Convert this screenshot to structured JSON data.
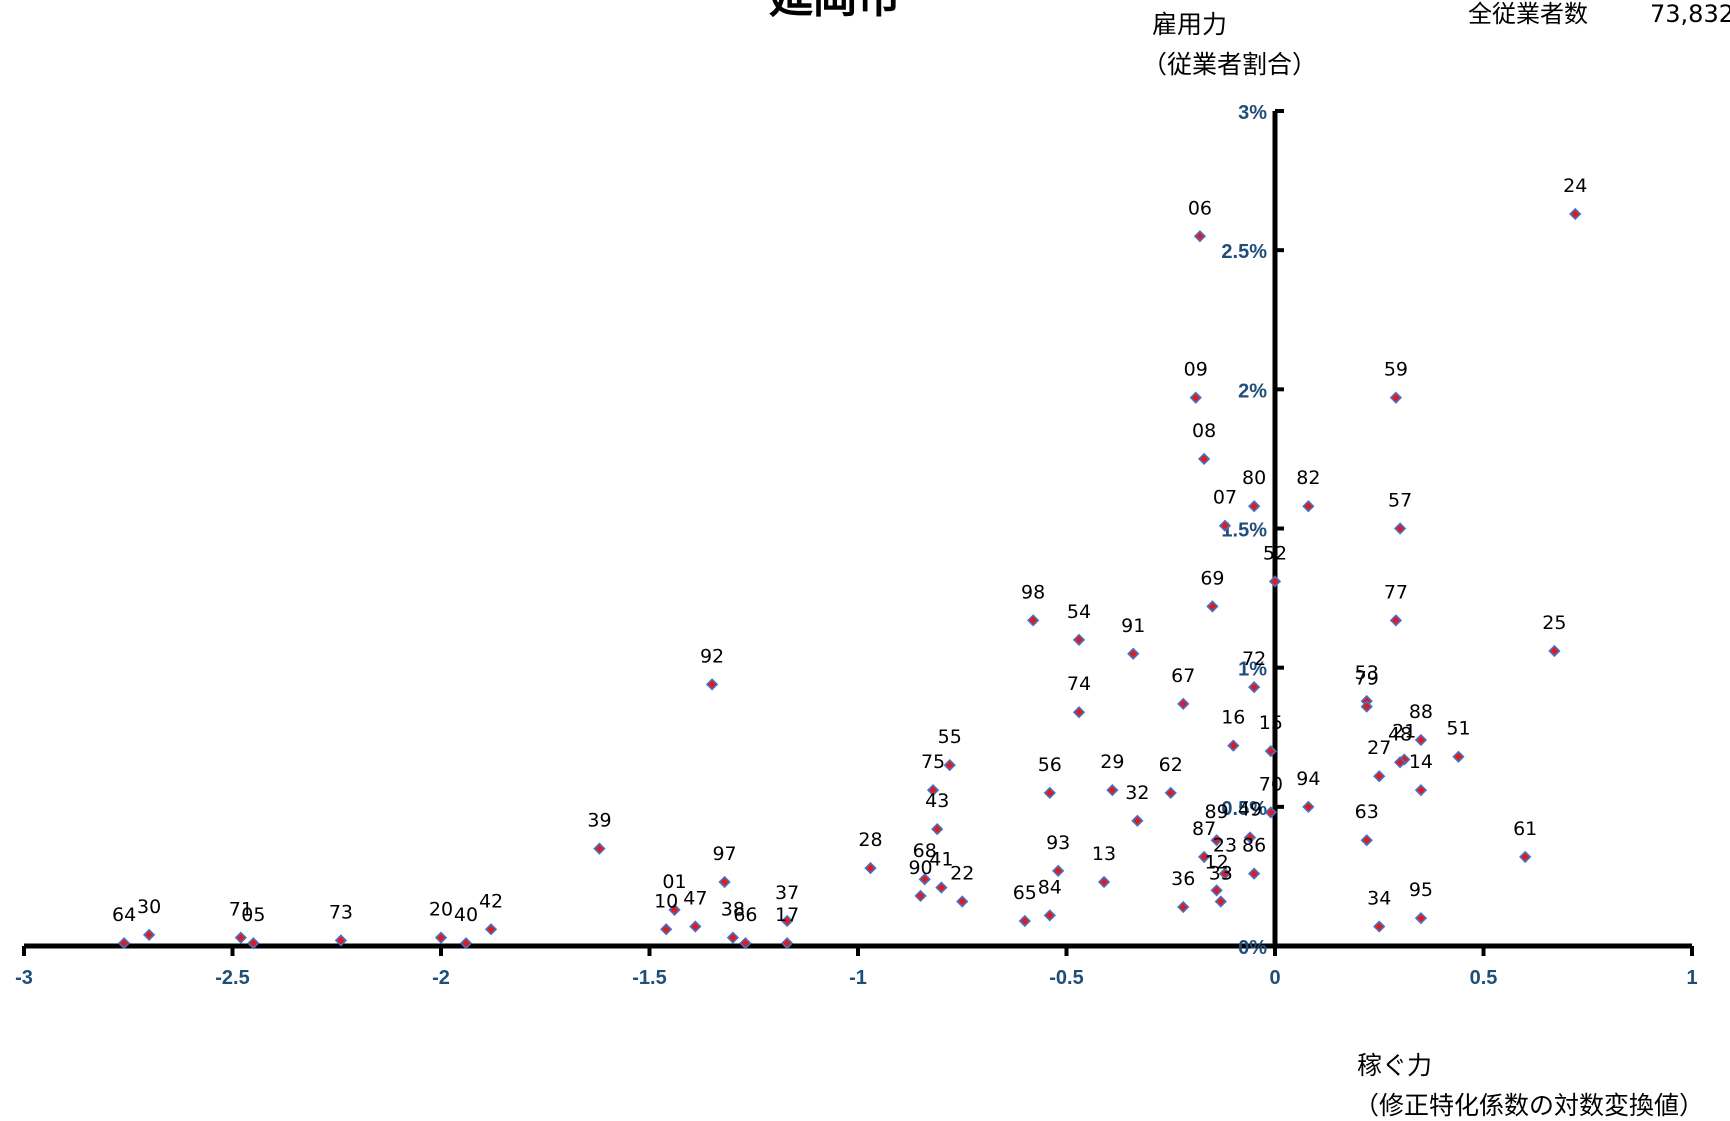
{
  "chart_data": {
    "type": "scatter",
    "title": "延岡市",
    "total_label": "全従業者数",
    "total_value": "73,832",
    "ylabel": [
      "雇用力",
      "（従業者割合）"
    ],
    "xlabel": [
      "稼ぐ力",
      "（修正特化係数の対数変換値）"
    ],
    "xlim": [
      -3,
      1
    ],
    "ylim": [
      0,
      3
    ],
    "x_ticks": [
      "-3",
      "-2.5",
      "-2",
      "-1.5",
      "-1",
      "-0.5",
      "0",
      "0.5",
      "1"
    ],
    "y_ticks": [
      "0%",
      "0.5%",
      "1%",
      "1.5%",
      "2%",
      "2.5%",
      "3%"
    ],
    "marker_fill": "#e31a1c",
    "marker_edge": "#4472c4",
    "points": [
      {
        "label": "24",
        "x": 0.72,
        "y": 2.63
      },
      {
        "label": "06",
        "x": -0.18,
        "y": 2.55
      },
      {
        "label": "09",
        "x": -0.19,
        "y": 1.97
      },
      {
        "label": "59",
        "x": 0.29,
        "y": 1.97
      },
      {
        "label": "08",
        "x": -0.17,
        "y": 1.75
      },
      {
        "label": "80",
        "x": -0.05,
        "y": 1.58
      },
      {
        "label": "82",
        "x": 0.08,
        "y": 1.58
      },
      {
        "label": "07",
        "x": -0.12,
        "y": 1.51
      },
      {
        "label": "57",
        "x": 0.3,
        "y": 1.5
      },
      {
        "label": "52",
        "x": 0.0,
        "y": 1.31
      },
      {
        "label": "69",
        "x": -0.15,
        "y": 1.22
      },
      {
        "label": "98",
        "x": -0.58,
        "y": 1.17
      },
      {
        "label": "77",
        "x": 0.29,
        "y": 1.17
      },
      {
        "label": "54",
        "x": -0.47,
        "y": 1.1
      },
      {
        "label": "91",
        "x": -0.34,
        "y": 1.05
      },
      {
        "label": "25",
        "x": 0.67,
        "y": 1.06
      },
      {
        "label": "92",
        "x": -1.35,
        "y": 0.94
      },
      {
        "label": "72",
        "x": -0.05,
        "y": 0.93
      },
      {
        "label": "74",
        "x": -0.47,
        "y": 0.84
      },
      {
        "label": "67",
        "x": -0.22,
        "y": 0.87
      },
      {
        "label": "53",
        "x": 0.22,
        "y": 0.88
      },
      {
        "label": "79",
        "x": 0.22,
        "y": 0.86
      },
      {
        "label": "88",
        "x": 0.35,
        "y": 0.74
      },
      {
        "label": "16",
        "x": -0.1,
        "y": 0.72
      },
      {
        "label": "15",
        "x": -0.01,
        "y": 0.7
      },
      {
        "label": "51",
        "x": 0.44,
        "y": 0.68
      },
      {
        "label": "21",
        "x": 0.31,
        "y": 0.67
      },
      {
        "label": "48",
        "x": 0.3,
        "y": 0.66
      },
      {
        "label": "55",
        "x": -0.78,
        "y": 0.65
      },
      {
        "label": "27",
        "x": 0.25,
        "y": 0.61
      },
      {
        "label": "75",
        "x": -0.82,
        "y": 0.56
      },
      {
        "label": "56",
        "x": -0.54,
        "y": 0.55
      },
      {
        "label": "29",
        "x": -0.39,
        "y": 0.56
      },
      {
        "label": "62",
        "x": -0.25,
        "y": 0.55
      },
      {
        "label": "14",
        "x": 0.35,
        "y": 0.56
      },
      {
        "label": "94",
        "x": 0.08,
        "y": 0.5
      },
      {
        "label": "70",
        "x": -0.01,
        "y": 0.48
      },
      {
        "label": "32",
        "x": -0.33,
        "y": 0.45
      },
      {
        "label": "43",
        "x": -0.81,
        "y": 0.42
      },
      {
        "label": "49",
        "x": -0.06,
        "y": 0.39
      },
      {
        "label": "89",
        "x": -0.14,
        "y": 0.38
      },
      {
        "label": "63",
        "x": 0.22,
        "y": 0.38
      },
      {
        "label": "39",
        "x": -1.62,
        "y": 0.35
      },
      {
        "label": "61",
        "x": 0.6,
        "y": 0.32
      },
      {
        "label": "87",
        "x": -0.17,
        "y": 0.32
      },
      {
        "label": "28",
        "x": -0.97,
        "y": 0.28
      },
      {
        "label": "23",
        "x": -0.12,
        "y": 0.26
      },
      {
        "label": "93",
        "x": -0.52,
        "y": 0.27
      },
      {
        "label": "86",
        "x": -0.05,
        "y": 0.26
      },
      {
        "label": "97",
        "x": -1.32,
        "y": 0.23
      },
      {
        "label": "13",
        "x": -0.41,
        "y": 0.23
      },
      {
        "label": "68",
        "x": -0.84,
        "y": 0.24
      },
      {
        "label": "41",
        "x": -0.8,
        "y": 0.21
      },
      {
        "label": "12",
        "x": -0.14,
        "y": 0.2
      },
      {
        "label": "90",
        "x": -0.85,
        "y": 0.18
      },
      {
        "label": "22",
        "x": -0.75,
        "y": 0.16
      },
      {
        "label": "33",
        "x": -0.13,
        "y": 0.16
      },
      {
        "label": "01",
        "x": -1.44,
        "y": 0.13
      },
      {
        "label": "36",
        "x": -0.22,
        "y": 0.14
      },
      {
        "label": "84",
        "x": -0.54,
        "y": 0.11
      },
      {
        "label": "65",
        "x": -0.6,
        "y": 0.09
      },
      {
        "label": "37",
        "x": -1.17,
        "y": 0.09
      },
      {
        "label": "95",
        "x": 0.35,
        "y": 0.1
      },
      {
        "label": "47",
        "x": -1.39,
        "y": 0.07
      },
      {
        "label": "34",
        "x": 0.25,
        "y": 0.07
      },
      {
        "label": "42",
        "x": -1.88,
        "y": 0.06
      },
      {
        "label": "10",
        "x": -1.46,
        "y": 0.06
      },
      {
        "label": "30",
        "x": -2.7,
        "y": 0.04
      },
      {
        "label": "71",
        "x": -2.48,
        "y": 0.03
      },
      {
        "label": "38",
        "x": -1.3,
        "y": 0.03
      },
      {
        "label": "20",
        "x": -2.0,
        "y": 0.03
      },
      {
        "label": "73",
        "x": -2.24,
        "y": 0.02
      },
      {
        "label": "66",
        "x": -1.27,
        "y": 0.01
      },
      {
        "label": "17",
        "x": -1.17,
        "y": 0.01
      },
      {
        "label": "40",
        "x": -1.94,
        "y": 0.01
      },
      {
        "label": "05",
        "x": -2.45,
        "y": 0.01
      },
      {
        "label": "64",
        "x": -2.76,
        "y": 0.01
      }
    ]
  }
}
